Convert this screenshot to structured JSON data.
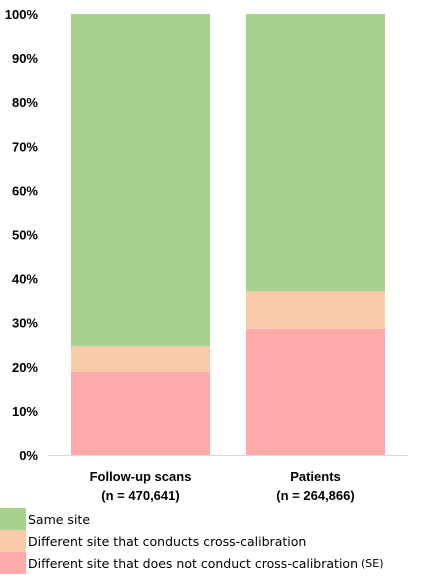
{
  "chart_data": {
    "type": "bar",
    "stacked": true,
    "categories": [
      [
        "Follow-up scans",
        "(n = 470,641)"
      ],
      [
        "Patients",
        "(n = 264,866)"
      ]
    ],
    "series": [
      {
        "name": "Different site that does not conduct cross-calibration",
        "color": "#ffaaaa",
        "values": [
          18.9,
          28.6
        ]
      },
      {
        "name": "Different site that conducts cross-calibration",
        "color": "#f8ccaa",
        "values": [
          5.8,
          8.5
        ]
      },
      {
        "name": "Same site",
        "color": "#a8d08e",
        "values": [
          75.3,
          62.9
        ]
      }
    ],
    "ylim": [
      0,
      100
    ],
    "yticks": [
      "0%",
      "10%",
      "20%",
      "30%",
      "40%",
      "50%",
      "60%",
      "70%",
      "80%",
      "90%",
      "100%"
    ],
    "legend_placement": "bottom-left",
    "legend_note": "(SE)",
    "grid": false
  }
}
